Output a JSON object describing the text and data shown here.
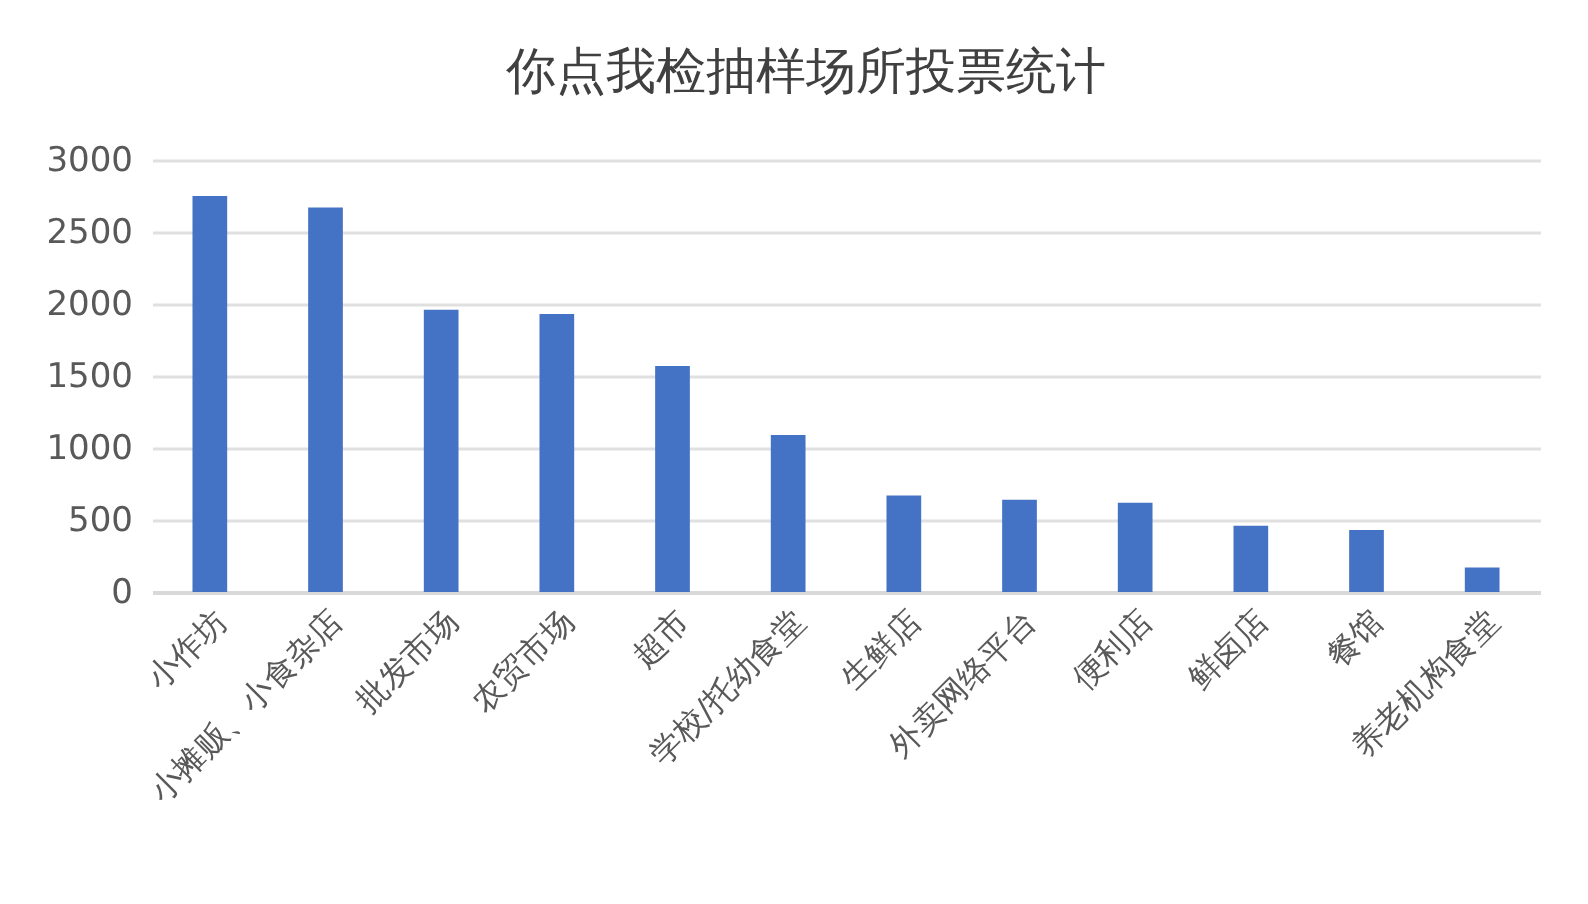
{
  "chart_data": {
    "type": "bar",
    "title": "你点我检抽样场所投票统计",
    "categories": [
      "小作坊",
      "小摊贩、小食杂店",
      "批发市场",
      "农贸市场",
      "超市",
      "学校/托幼食堂",
      "生鲜店",
      "外卖网络平台",
      "便利店",
      "鲜卤店",
      "餐馆",
      "养老机构食堂"
    ],
    "values": [
      2750,
      2670,
      1960,
      1930,
      1570,
      1090,
      670,
      640,
      620,
      460,
      430,
      170
    ],
    "color": "#4472c4",
    "ylim": [
      0,
      3000
    ],
    "yticks": [
      0,
      500,
      1000,
      1500,
      2000,
      2500,
      3000
    ],
    "grid": "y"
  }
}
